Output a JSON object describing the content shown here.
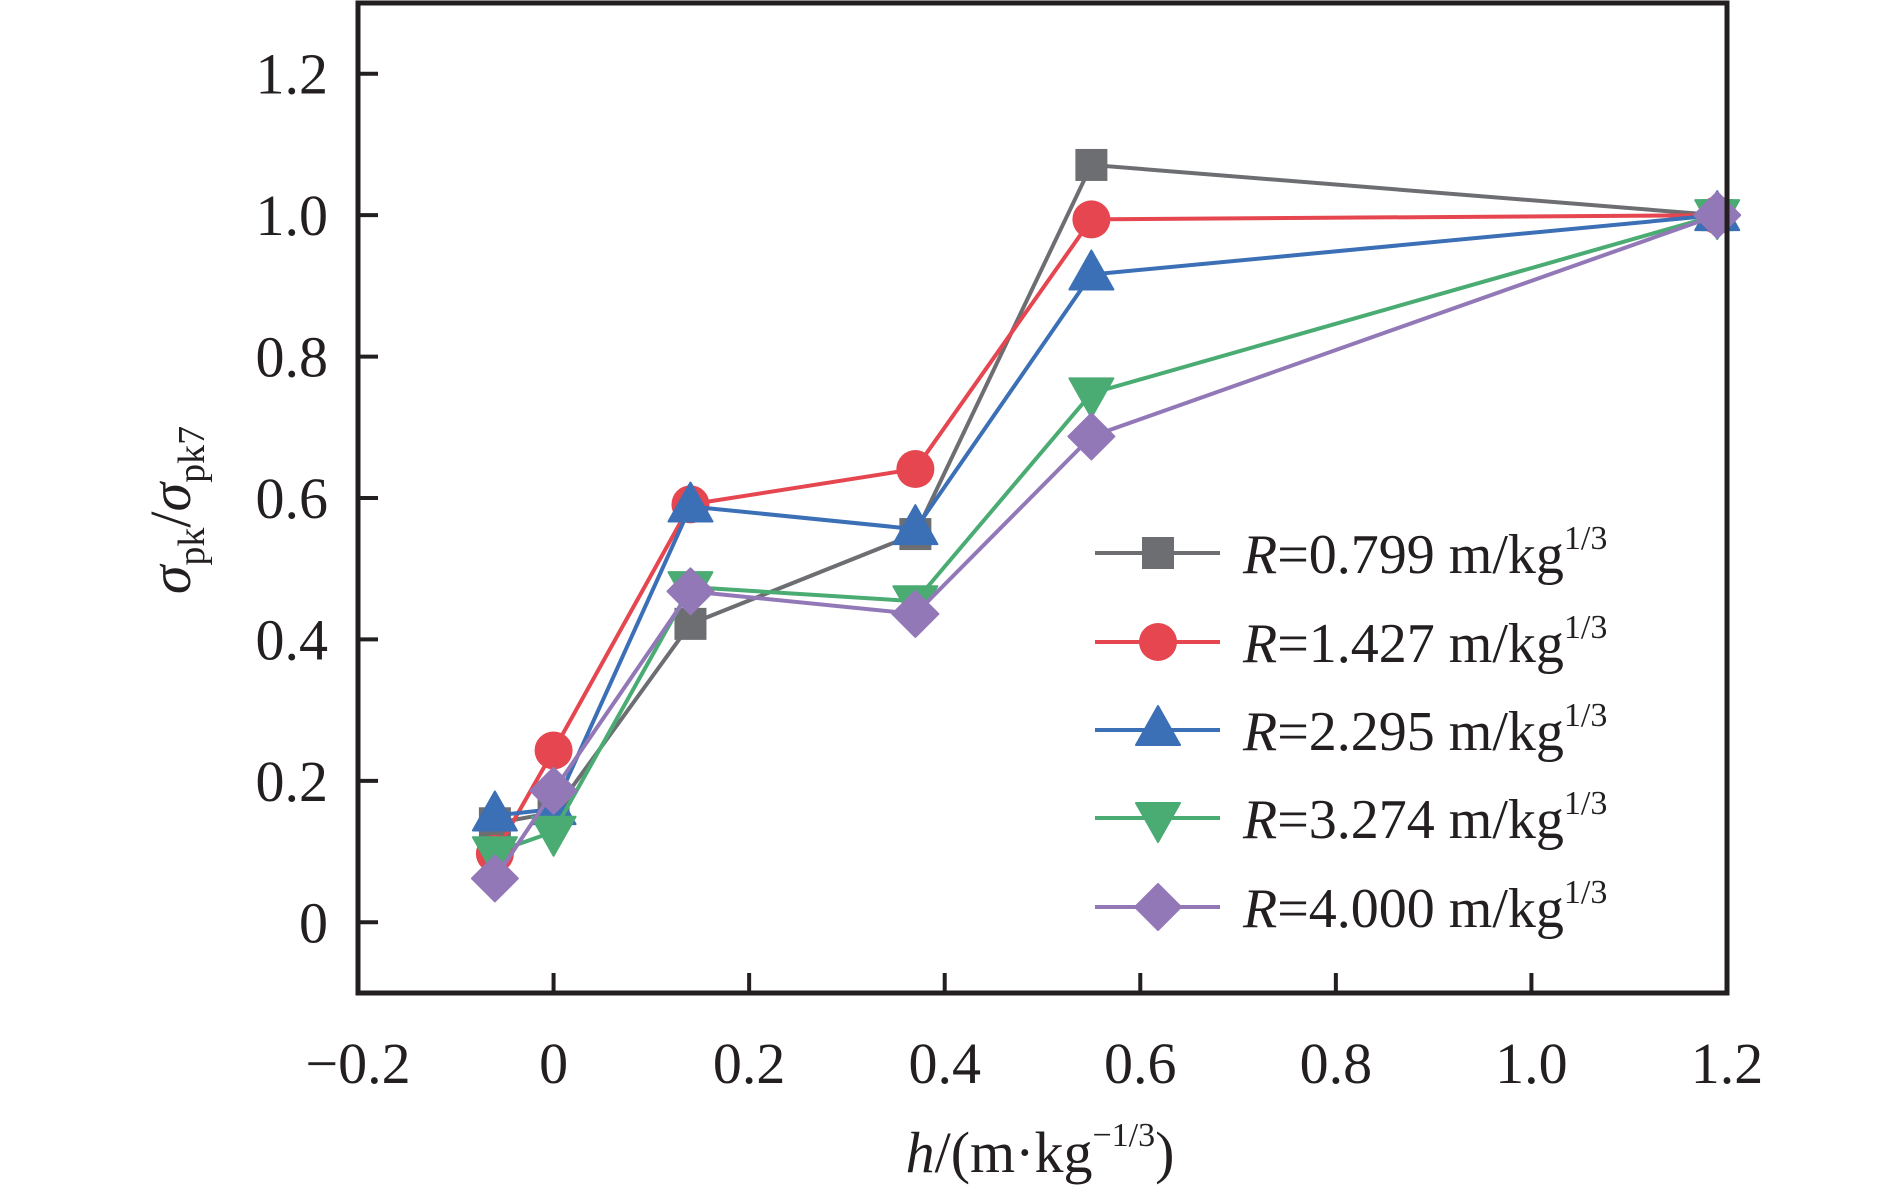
{
  "chart_data": {
    "type": "line",
    "title": "",
    "xlabel": {
      "var": "h",
      "unit_prefix": "/(m·kg",
      "unit_sup": "−1/3",
      "unit_suffix": ")"
    },
    "ylabel": {
      "num_sym": "σ",
      "num_sub": "pk",
      "sep": "/",
      "den_sym": "σ",
      "den_sub": "pk7"
    },
    "xlim": [
      -0.2,
      1.2
    ],
    "ylim": [
      -0.1,
      1.3
    ],
    "xticks": [
      -0.2,
      0,
      0.2,
      0.4,
      0.6,
      0.8,
      1.0,
      1.2
    ],
    "xtick_labels": [
      "−0.2",
      "0",
      "0.2",
      "0.4",
      "0.6",
      "0.8",
      "1.0",
      "1.2"
    ],
    "yticks": [
      0,
      0.2,
      0.4,
      0.6,
      0.8,
      1.0,
      1.2
    ],
    "ytick_labels": [
      "0",
      "0.2",
      "0.4",
      "0.6",
      "0.8",
      "1.0",
      "1.2"
    ],
    "grid": false,
    "legend_position": "lower-right",
    "x": [
      -0.06,
      0.0,
      0.14,
      0.37,
      0.55,
      1.19
    ],
    "series": [
      {
        "name": "R=0.799 m/kg1/3",
        "label_var": "R",
        "label_value": "=0.799 m/kg",
        "label_sup": "1/3",
        "marker": "square",
        "color": "#6d6e72",
        "values": [
          0.14,
          0.155,
          0.422,
          0.549,
          1.071,
          1.0
        ]
      },
      {
        "name": "R=1.427 m/kg1/3",
        "label_var": "R",
        "label_value": "=1.427 m/kg",
        "label_sup": "1/3",
        "marker": "circle",
        "color": "#e5464f",
        "values": [
          0.097,
          0.243,
          0.591,
          0.641,
          0.994,
          1.0
        ]
      },
      {
        "name": "R=2.295 m/kg1/3",
        "label_var": "R",
        "label_value": "=2.295 m/kg",
        "label_sup": "1/3",
        "marker": "triangle-up",
        "color": "#3b6fb6",
        "values": [
          0.151,
          0.16,
          0.588,
          0.556,
          0.916,
          1.0
        ]
      },
      {
        "name": "R=3.274 m/kg1/3",
        "label_var": "R",
        "label_value": "=3.274 m/kg",
        "label_sup": "1/3",
        "marker": "triangle-down",
        "color": "#4aab73",
        "values": [
          0.099,
          0.128,
          0.474,
          0.454,
          0.748,
          1.0
        ]
      },
      {
        "name": "R=4.000 m/kg1/3",
        "label_var": "R",
        "label_value": "=4.000 m/kg",
        "label_sup": "1/3",
        "marker": "diamond",
        "color": "#9378b8",
        "values": [
          0.062,
          0.186,
          0.468,
          0.436,
          0.687,
          1.0
        ]
      }
    ]
  }
}
